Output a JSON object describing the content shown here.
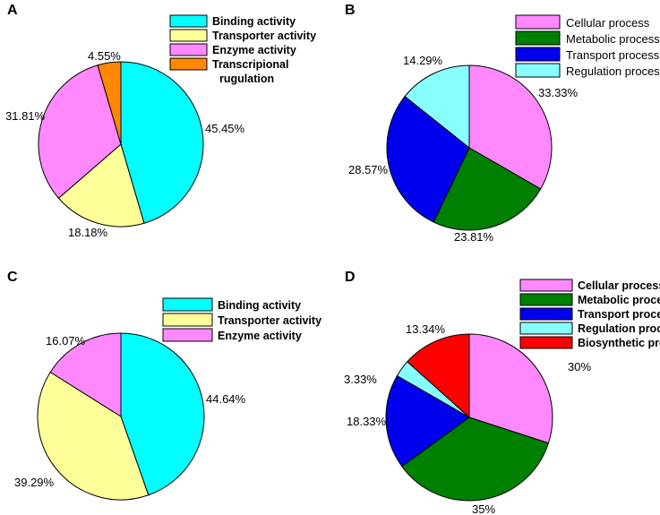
{
  "chart_data": [
    {
      "panel": "A",
      "type": "pie",
      "legend_style": "bold",
      "slices": [
        {
          "name": "Binding activity",
          "value": 45.45,
          "label": "45.45%",
          "color": "#00FFFF"
        },
        {
          "name": "Transporter activity",
          "value": 18.18,
          "label": "18.18%",
          "color": "#FFFF99"
        },
        {
          "name": "Enzyme activity",
          "value": 31.81,
          "label": "31.81%",
          "color": "#FF88FF"
        },
        {
          "name": "Transcripional rugulation",
          "value": 4.55,
          "label": "4.55%",
          "color": "#FF8800"
        }
      ],
      "legend": [
        {
          "lines": [
            "Binding activity"
          ],
          "color": "#00FFFF"
        },
        {
          "lines": [
            "Transporter activity"
          ],
          "color": "#FFFF99"
        },
        {
          "lines": [
            "Enzyme activity"
          ],
          "color": "#FF88FF"
        },
        {
          "lines": [
            "Transcripional",
            "rugulation"
          ],
          "color": "#FF8800"
        }
      ]
    },
    {
      "panel": "B",
      "type": "pie",
      "legend_style": "normal",
      "slices": [
        {
          "name": "Cellular process",
          "value": 33.33,
          "label": "33.33%",
          "color": "#FF88FF"
        },
        {
          "name": "Metabolic process",
          "value": 23.81,
          "label": "23.81%",
          "color": "#008000"
        },
        {
          "name": "Transport process",
          "value": 28.57,
          "label": "28.57%",
          "color": "#0000EE"
        },
        {
          "name": "Regulation process",
          "value": 14.29,
          "label": "14.29%",
          "color": "#88FFFF"
        }
      ],
      "legend": [
        {
          "lines": [
            "Cellular process"
          ],
          "color": "#FF88FF"
        },
        {
          "lines": [
            "Metabolic process"
          ],
          "color": "#008000"
        },
        {
          "lines": [
            "Transport process"
          ],
          "color": "#0000EE"
        },
        {
          "lines": [
            "Regulation process"
          ],
          "color": "#88FFFF"
        }
      ]
    },
    {
      "panel": "C",
      "type": "pie",
      "legend_style": "bold",
      "slices": [
        {
          "name": "Binding activity",
          "value": 44.64,
          "label": "44.64%",
          "color": "#00FFFF"
        },
        {
          "name": "Transporter activity",
          "value": 39.29,
          "label": "39.29%",
          "color": "#FFFF99"
        },
        {
          "name": "Enzyme activity",
          "value": 16.07,
          "label": "16.07%",
          "color": "#FF88FF"
        }
      ],
      "legend": [
        {
          "lines": [
            "Binding activity"
          ],
          "color": "#00FFFF"
        },
        {
          "lines": [
            "Transporter activity"
          ],
          "color": "#FFFF99"
        },
        {
          "lines": [
            "Enzyme activity"
          ],
          "color": "#FF88FF"
        }
      ]
    },
    {
      "panel": "D",
      "type": "pie",
      "legend_style": "bold",
      "slices": [
        {
          "name": "Cellular process",
          "value": 30,
          "label": "30%",
          "color": "#FF88FF"
        },
        {
          "name": "Metabolic process",
          "value": 35,
          "label": "35%",
          "color": "#008000"
        },
        {
          "name": "Transport process",
          "value": 18.33,
          "label": "18.33%",
          "color": "#0000EE"
        },
        {
          "name": "Regulation process",
          "value": 3.33,
          "label": "3.33%",
          "color": "#88FFFF"
        },
        {
          "name": "Biosynthetic process",
          "value": 13.34,
          "label": "13.34%",
          "color": "#FF0000"
        }
      ],
      "legend": [
        {
          "lines": [
            "Cellular process"
          ],
          "color": "#FF88FF"
        },
        {
          "lines": [
            "Metabolic process"
          ],
          "color": "#008000"
        },
        {
          "lines": [
            "Transport process"
          ],
          "color": "#0000EE"
        },
        {
          "lines": [
            "Regulation process"
          ],
          "color": "#88FFFF"
        },
        {
          "lines": [
            "Biosynthetic process"
          ],
          "color": "#FF0000"
        }
      ]
    }
  ]
}
